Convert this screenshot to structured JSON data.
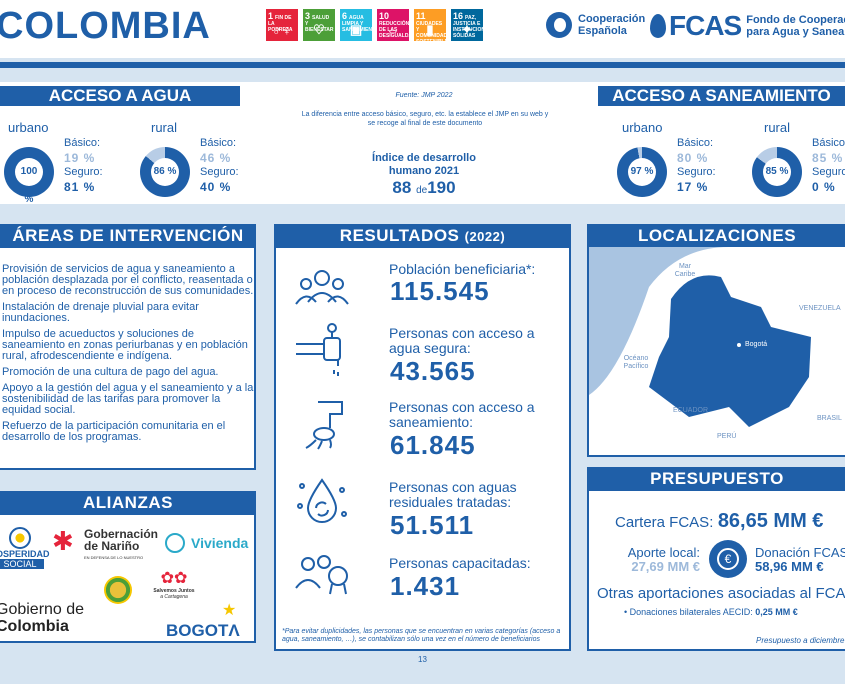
{
  "header": {
    "country": "COLOMBIA",
    "sdgs": [
      {
        "num": "1",
        "label": "FIN DE LA POBREZA",
        "glyph": "♂♀",
        "color": "#e5243b"
      },
      {
        "num": "3",
        "label": "SALUD Y BIENESTAR",
        "glyph": "♡",
        "color": "#4c9f38"
      },
      {
        "num": "6",
        "label": "AGUA LIMPIA Y SANEAMIENTO",
        "glyph": "▣",
        "color": "#26bde2"
      },
      {
        "num": "10",
        "label": "REDUCCIÓN DE LAS DESIGUALDADES",
        "glyph": "⇔",
        "color": "#dd1367"
      },
      {
        "num": "11",
        "label": "CIUDADES Y COMUNIDADES SOSTENIBLES",
        "glyph": "▮",
        "color": "#fd9d24"
      },
      {
        "num": "16",
        "label": "PAZ, JUSTICIA E INSTITUCIONES SÓLIDAS",
        "glyph": "✦",
        "color": "#00689d"
      }
    ],
    "coop_line1": "Cooperación",
    "coop_line2": "Española",
    "fcas_word": "FCAS",
    "fcas_sub1": "Fondo de Cooperación",
    "fcas_sub2": "para Agua y Saneam"
  },
  "water": {
    "title": "ACCESO A AGUA",
    "urbano": {
      "label": "urbano",
      "pct": "100 %",
      "basic_key": "Básico:",
      "basic": "19 %",
      "safe_key": "Seguro:",
      "safe": "81 %",
      "fill": 100
    },
    "rural": {
      "label": "rural",
      "pct": "86 %",
      "basic_key": "Básico:",
      "basic": "46 %",
      "safe_key": "Seguro:",
      "safe": "40 %",
      "fill": 86
    }
  },
  "center": {
    "source": "Fuente: JMP 2022",
    "note": "La diferencia entre acceso básico, seguro, etc. la establece el JMP en su web y se recoge al final de este documento",
    "idh_label1": "Índice de desarrollo",
    "idh_label2": "humano 2021",
    "idh_rank": "88",
    "idh_de": "de",
    "idh_total": "190"
  },
  "sanitation": {
    "title": "ACCESO A SANEAMIENTO",
    "urbano": {
      "label": "urbano",
      "pct": "97 %",
      "basic_key": "Básico:",
      "basic": "80 %",
      "safe_key": "Seguro:",
      "safe": "17 %",
      "fill": 97
    },
    "rural": {
      "label": "rural",
      "pct": "85 %",
      "basic_key": "Básico:",
      "basic": "85 %",
      "safe_key": "Seguro:",
      "safe": "0 %",
      "fill": 85
    }
  },
  "areas": {
    "title": "ÁREAS DE INTERVENCIÓN",
    "items": [
      "Provisión de servicios de agua y saneamiento a población desplazada por el conflicto, reasentada o en proceso de reconstrucción de sus comunidades.",
      "Instalación de drenaje pluvial para evitar inundaciones.",
      "Impulso de acueductos y soluciones de saneamiento en zonas periurbanas y en población rural, afrodescendiente e indígena.",
      "Promoción de una cultura de pago del agua.",
      "Apoyo a la gestión del agua y el saneamiento y a la sostenibilidad de las tarifas para promover la equidad social.",
      "Refuerzo de la participación comunitaria en el desarrollo de los programas."
    ]
  },
  "results": {
    "title": "RESULTADOS",
    "year": "(2022)",
    "items": [
      {
        "label": "Población beneficiaria*:",
        "value": "115.545"
      },
      {
        "label": "Personas con acceso a agua segura:",
        "value": "43.565"
      },
      {
        "label": "Personas con acceso a saneamiento:",
        "value": "61.845"
      },
      {
        "label": "Personas con aguas residuales tratadas:",
        "value": "51.511"
      },
      {
        "label": "Personas capacitadas:",
        "value": "1.431"
      }
    ],
    "footnote": "*Para evitar duplicidades, las personas que se encuentran en varias categorías (acceso a agua, saneamiento, …), se contabilizan sólo una vez en el número de beneficiarios"
  },
  "map": {
    "title": "LOCALIZACIONES",
    "labels": {
      "mar_caribe": "Mar Caribe",
      "venezuela": "VENEZUELA",
      "oceano": "Océano Pacífico",
      "bogota": "Bogotá",
      "ecuador": "ECUADOR",
      "peru": "PERÚ",
      "brasil": "BRASIL"
    },
    "colors": {
      "sea": "#a9c4e1",
      "land": "#ffffff",
      "country": "#1f5fa8"
    }
  },
  "budget": {
    "title": "PRESUPUESTO",
    "cartera_label": "Cartera FCAS:",
    "cartera_value": "86,65 MM €",
    "local_label": "Aporte local:",
    "local_value": "27,69 MM €",
    "donacion_label": "Donación FCAS:",
    "donacion_value": "58,96 MM €",
    "otras": "Otras aportaciones asociadas al FCAS",
    "bilateral_label": "• Donaciones bilaterales AECID:",
    "bilateral_value": "0,25 MM €",
    "date": "Presupuesto a diciembre 2",
    "euro_sign": "€"
  },
  "alliances": {
    "title": "ALIANZAS",
    "prosperidad": "OSPERIDAD",
    "social": "SOCIAL",
    "narino1": "Gobernación",
    "narino2": "de Nariño",
    "narino3": "EN DEFENSA DE LO NUESTRO",
    "vivienda": "Vivienda",
    "salvemos1": "Salvemos Juntos",
    "salvemos2": "a Cartagena",
    "gob1": "Gobierno de",
    "gob2": "Colombia",
    "bogota": "BOGOTΛ"
  },
  "page": {
    "number": "13"
  }
}
